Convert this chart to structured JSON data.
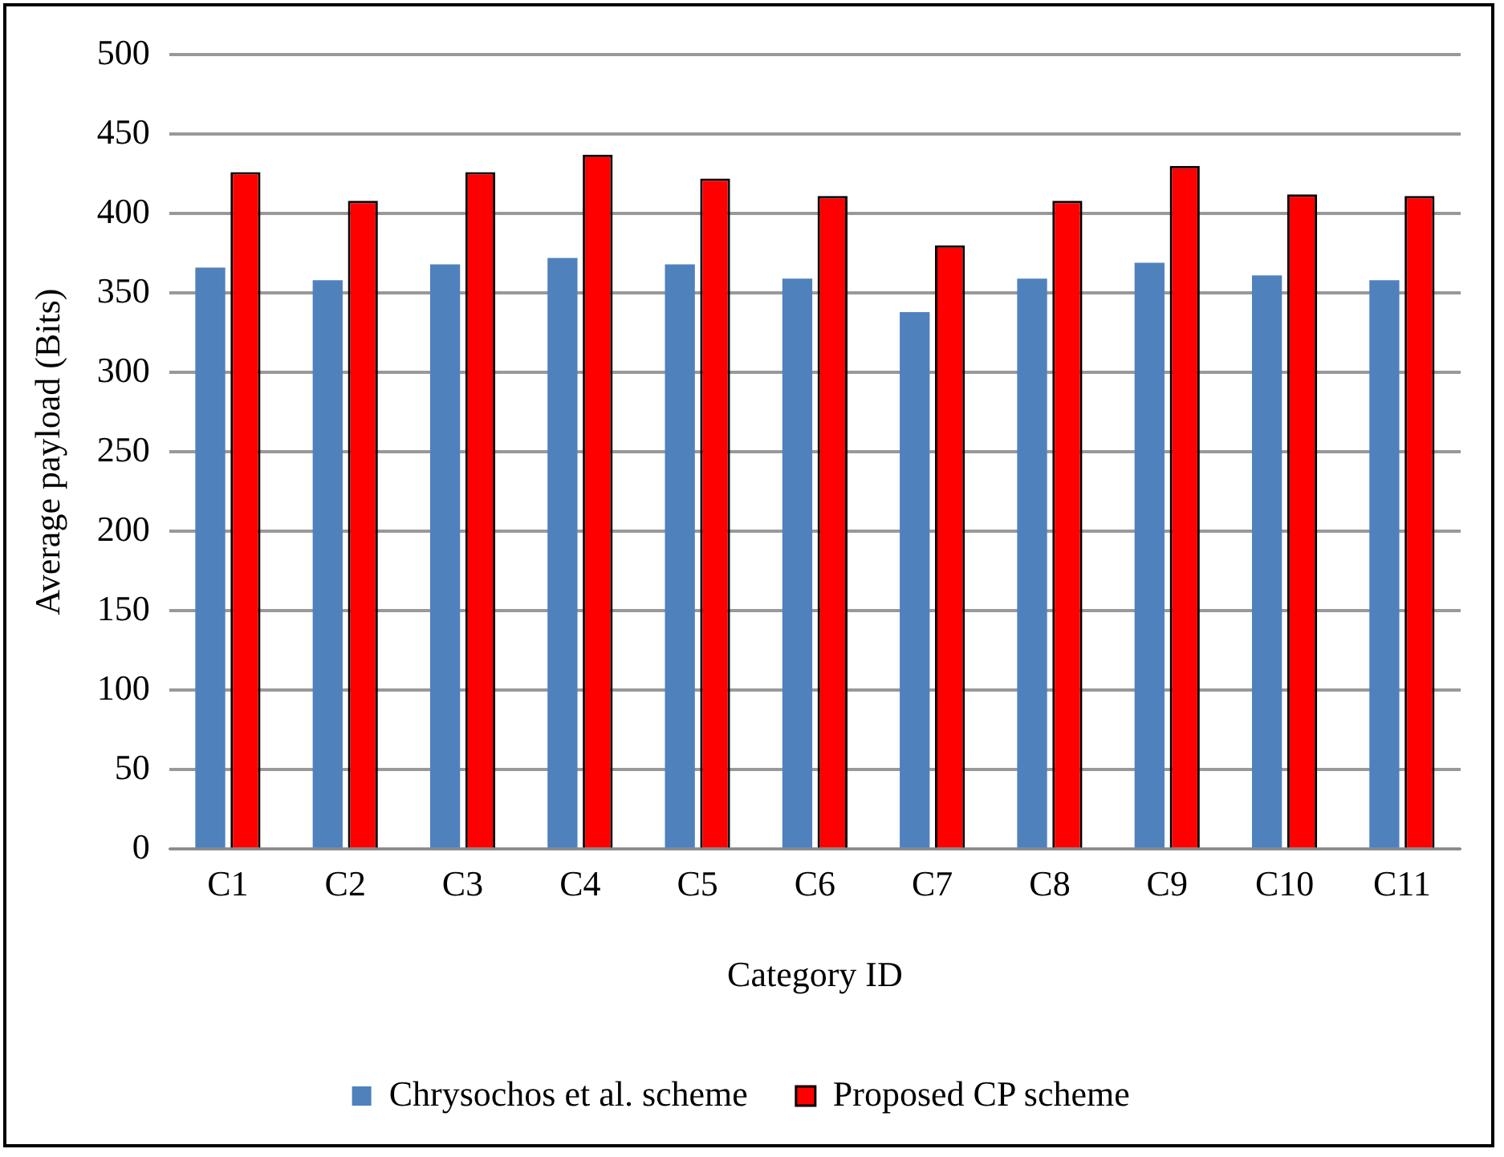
{
  "chart_data": {
    "type": "bar",
    "xlabel": "Category ID",
    "ylabel": "Average payload (Bits)",
    "categories": [
      "C1",
      "C2",
      "C3",
      "C4",
      "C5",
      "C6",
      "C7",
      "C8",
      "C9",
      "C10",
      "C11"
    ],
    "series": [
      {
        "name": "Chrysochos et al. scheme",
        "color": "#4f81bd",
        "values": [
          366,
          358,
          368,
          372,
          368,
          359,
          338,
          359,
          369,
          361,
          358
        ]
      },
      {
        "name": "Proposed CP scheme",
        "color": "#ff0000",
        "values": [
          426,
          408,
          426,
          437,
          422,
          411,
          380,
          408,
          430,
          412,
          411
        ]
      }
    ],
    "ylim": [
      0,
      500
    ],
    "yticks": [
      0,
      50,
      100,
      150,
      200,
      250,
      300,
      350,
      400,
      450,
      500
    ],
    "grid": "y",
    "legend": "bottom"
  }
}
